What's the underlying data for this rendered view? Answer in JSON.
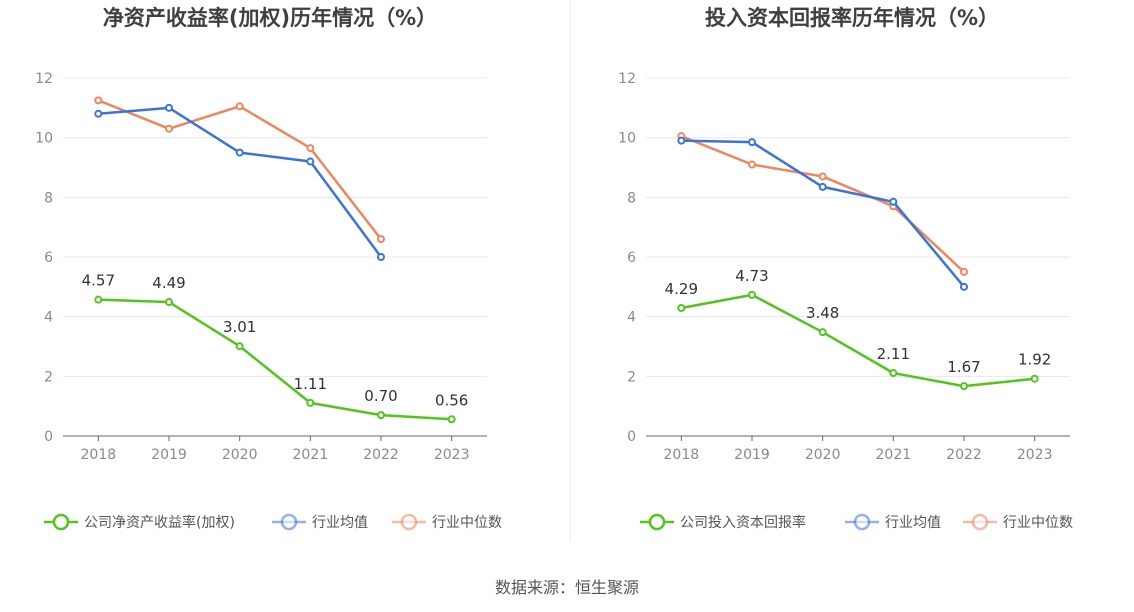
{
  "source": "数据来源：恒生聚源",
  "chart_data": [
    {
      "type": "line",
      "title": "净资产收益率(加权)历年情况（%）",
      "categories": [
        "2018",
        "2019",
        "2020",
        "2021",
        "2022",
        "2023"
      ],
      "ylim": [
        0,
        12
      ],
      "yticks": [
        "0",
        "2",
        "4",
        "6",
        "8",
        "10",
        "12"
      ],
      "grid": true,
      "legend_position": "bottom",
      "series": [
        {
          "name": "公司净资产收益率(加权)",
          "color": "#52c41a",
          "values": [
            4.57,
            4.49,
            3.01,
            1.11,
            0.7,
            0.56
          ],
          "labels": [
            "4.57",
            "4.49",
            "3.01",
            "1.11",
            "0.70",
            "0.56"
          ]
        },
        {
          "name": "行业均值",
          "color": "#3b74d9",
          "values": [
            10.8,
            11.0,
            9.5,
            9.2,
            6.0,
            null
          ]
        },
        {
          "name": "行业中位数",
          "color": "#f0855c",
          "values": [
            11.25,
            10.3,
            11.05,
            9.65,
            6.6,
            null
          ]
        }
      ]
    },
    {
      "type": "line",
      "title": "投入资本回报率历年情况（%）",
      "categories": [
        "2018",
        "2019",
        "2020",
        "2021",
        "2022",
        "2023"
      ],
      "ylim": [
        0,
        12
      ],
      "yticks": [
        "0",
        "2",
        "4",
        "6",
        "8",
        "10",
        "12"
      ],
      "grid": true,
      "legend_position": "bottom",
      "series": [
        {
          "name": "公司投入资本回报率",
          "color": "#52c41a",
          "values": [
            4.29,
            4.73,
            3.48,
            2.11,
            1.67,
            1.92
          ],
          "labels": [
            "4.29",
            "4.73",
            "3.48",
            "2.11",
            "1.67",
            "1.92"
          ]
        },
        {
          "name": "行业均值",
          "color": "#3b74d9",
          "values": [
            9.9,
            9.85,
            8.35,
            7.85,
            5.0,
            null
          ]
        },
        {
          "name": "行业中位数",
          "color": "#f0855c",
          "values": [
            10.05,
            9.1,
            8.7,
            7.7,
            5.5,
            null
          ]
        }
      ]
    }
  ]
}
